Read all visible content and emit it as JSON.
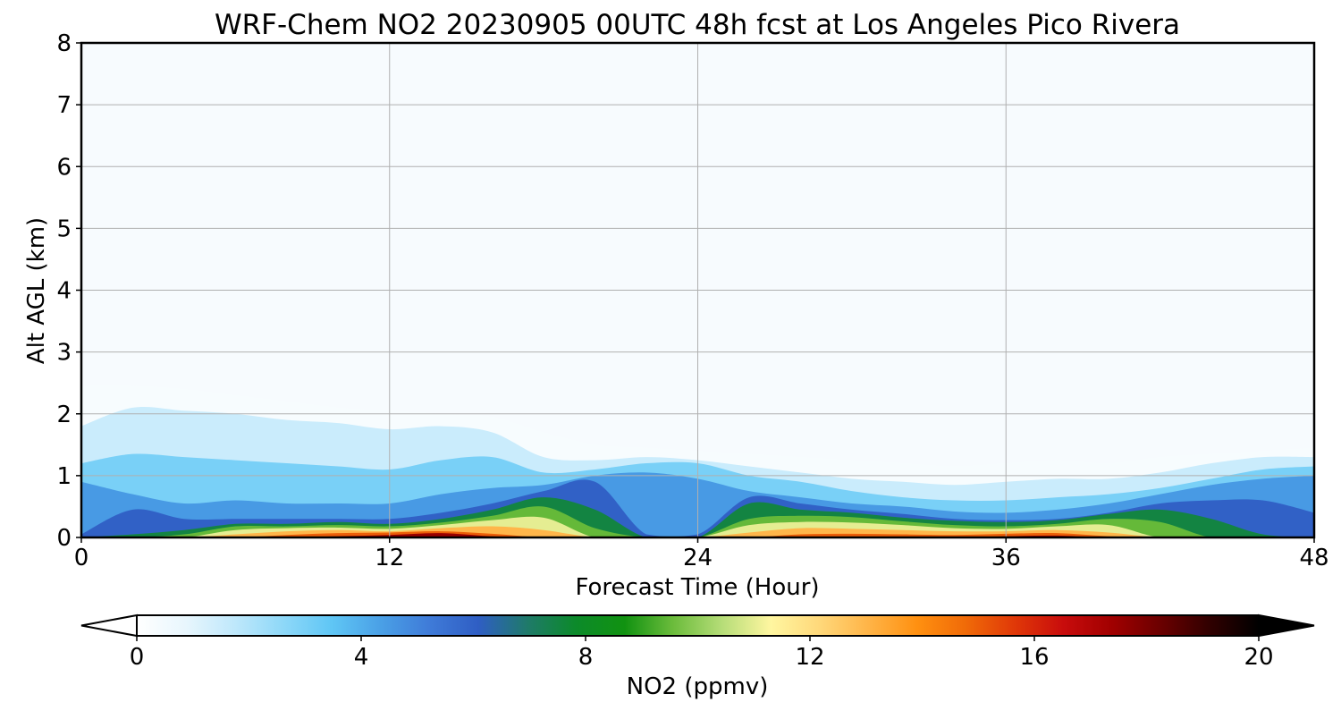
{
  "chart_data": {
    "type": "heatmap",
    "title": "WRF-Chem NO2  20230905 00UTC 48h fcst at Los Angeles Pico Rivera",
    "xlabel": "Forecast Time (Hour)",
    "ylabel": "Alt AGL (km)",
    "xlim": [
      0,
      48
    ],
    "ylim": [
      0,
      8
    ],
    "xticks": [
      "0",
      "12",
      "24",
      "36",
      "48"
    ],
    "yticks": [
      "0",
      "1",
      "2",
      "3",
      "4",
      "5",
      "6",
      "7",
      "8"
    ],
    "grid": true,
    "colorbar": {
      "label": "NO2  (ppmv)",
      "range": [
        0,
        20
      ],
      "ticks": [
        "0",
        "4",
        "8",
        "12",
        "16",
        "20"
      ],
      "extend": "both",
      "colors": [
        "#ffffff",
        "#e8f6fd",
        "#bfe8fb",
        "#8ed8f8",
        "#5fc6f5",
        "#4aa0e6",
        "#3f7bd8",
        "#2f5ec4",
        "#1f7a6a",
        "#0c8a2a",
        "#119211",
        "#6cbc3c",
        "#b6dd78",
        "#fff6a0",
        "#ffd87a",
        "#ffb447",
        "#ff9010",
        "#f06a08",
        "#e03808",
        "#c80c0c",
        "#a00000",
        "#6a0000",
        "#300000",
        "#000000"
      ]
    },
    "time_hours": [
      0,
      2,
      4,
      6,
      8,
      10,
      12,
      14,
      16,
      18,
      20,
      22,
      24,
      26,
      28,
      30,
      32,
      34,
      36,
      38,
      40,
      42,
      44,
      46,
      48
    ],
    "layers": [
      {
        "threshold_ppmv": 0.3,
        "top_km": [
          2.45,
          2.45,
          2.4,
          2.3,
          2.2,
          2.1,
          2.05,
          2.0,
          1.95,
          1.7,
          1.5,
          1.45,
          1.4,
          1.35,
          1.3,
          1.25,
          1.2,
          1.15,
          1.2,
          1.25,
          1.2,
          1.3,
          1.35,
          1.4,
          1.45
        ]
      },
      {
        "threshold_ppmv": 1.5,
        "top_km": [
          1.8,
          2.1,
          2.05,
          2.0,
          1.9,
          1.85,
          1.75,
          1.8,
          1.7,
          1.3,
          1.25,
          1.3,
          1.25,
          1.15,
          1.05,
          0.95,
          0.9,
          0.85,
          0.9,
          0.95,
          0.95,
          1.05,
          1.2,
          1.3,
          1.3
        ]
      },
      {
        "threshold_ppmv": 3.0,
        "top_km": [
          1.2,
          1.35,
          1.3,
          1.25,
          1.2,
          1.15,
          1.1,
          1.25,
          1.3,
          1.05,
          1.1,
          1.2,
          1.2,
          1.0,
          0.9,
          0.75,
          0.65,
          0.6,
          0.6,
          0.65,
          0.7,
          0.8,
          0.95,
          1.1,
          1.15
        ]
      },
      {
        "threshold_ppmv": 4.5,
        "top_km": [
          0.9,
          0.7,
          0.55,
          0.6,
          0.55,
          0.55,
          0.55,
          0.7,
          0.8,
          0.85,
          1.0,
          1.05,
          0.95,
          0.75,
          0.65,
          0.55,
          0.5,
          0.42,
          0.4,
          0.45,
          0.55,
          0.7,
          0.85,
          0.95,
          1.0
        ]
      },
      {
        "threshold_ppmv": 6.0,
        "top_km": [
          0.05,
          0.45,
          0.3,
          0.3,
          0.3,
          0.3,
          0.3,
          0.4,
          0.55,
          0.75,
          0.9,
          0.05,
          0.05,
          0.65,
          0.55,
          0.45,
          0.38,
          0.3,
          0.28,
          0.3,
          0.4,
          0.55,
          0.6,
          0.6,
          0.4
        ]
      },
      {
        "threshold_ppmv": 7.5,
        "top_km": [
          0,
          0.05,
          0.12,
          0.22,
          0.22,
          0.25,
          0.22,
          0.3,
          0.45,
          0.65,
          0.45,
          0,
          0,
          0.55,
          0.45,
          0.4,
          0.32,
          0.27,
          0.25,
          0.28,
          0.38,
          0.45,
          0.3,
          0.05,
          0
        ]
      },
      {
        "threshold_ppmv": 9.5,
        "top_km": [
          0,
          0,
          0.05,
          0.18,
          0.18,
          0.2,
          0.18,
          0.24,
          0.35,
          0.5,
          0.15,
          0,
          0,
          0.3,
          0.35,
          0.33,
          0.26,
          0.2,
          0.18,
          0.22,
          0.3,
          0.25,
          0,
          0,
          0
        ]
      },
      {
        "threshold_ppmv": 11.0,
        "top_km": [
          0,
          0,
          0,
          0.12,
          0.15,
          0.16,
          0.14,
          0.2,
          0.28,
          0.32,
          0,
          0,
          0,
          0.2,
          0.25,
          0.24,
          0.2,
          0.15,
          0.14,
          0.18,
          0.2,
          0,
          0,
          0,
          0
        ]
      },
      {
        "threshold_ppmv": 13.0,
        "top_km": [
          0,
          0,
          0,
          0.05,
          0.1,
          0.12,
          0.1,
          0.15,
          0.18,
          0.12,
          0,
          0,
          0,
          0.08,
          0.15,
          0.14,
          0.12,
          0.1,
          0.1,
          0.12,
          0.08,
          0,
          0,
          0,
          0
        ]
      },
      {
        "threshold_ppmv": 15.0,
        "top_km": [
          0,
          0,
          0,
          0,
          0.04,
          0.07,
          0.08,
          0.1,
          0.06,
          0,
          0,
          0,
          0,
          0,
          0.05,
          0.06,
          0.05,
          0.04,
          0.06,
          0.07,
          0.02,
          0,
          0,
          0,
          0
        ]
      },
      {
        "threshold_ppmv": 17.5,
        "top_km": [
          0,
          0,
          0,
          0,
          0,
          0.02,
          0.04,
          0.07,
          0.02,
          0,
          0,
          0,
          0,
          0,
          0,
          0,
          0,
          0,
          0.02,
          0.03,
          0,
          0,
          0,
          0,
          0
        ]
      }
    ]
  }
}
